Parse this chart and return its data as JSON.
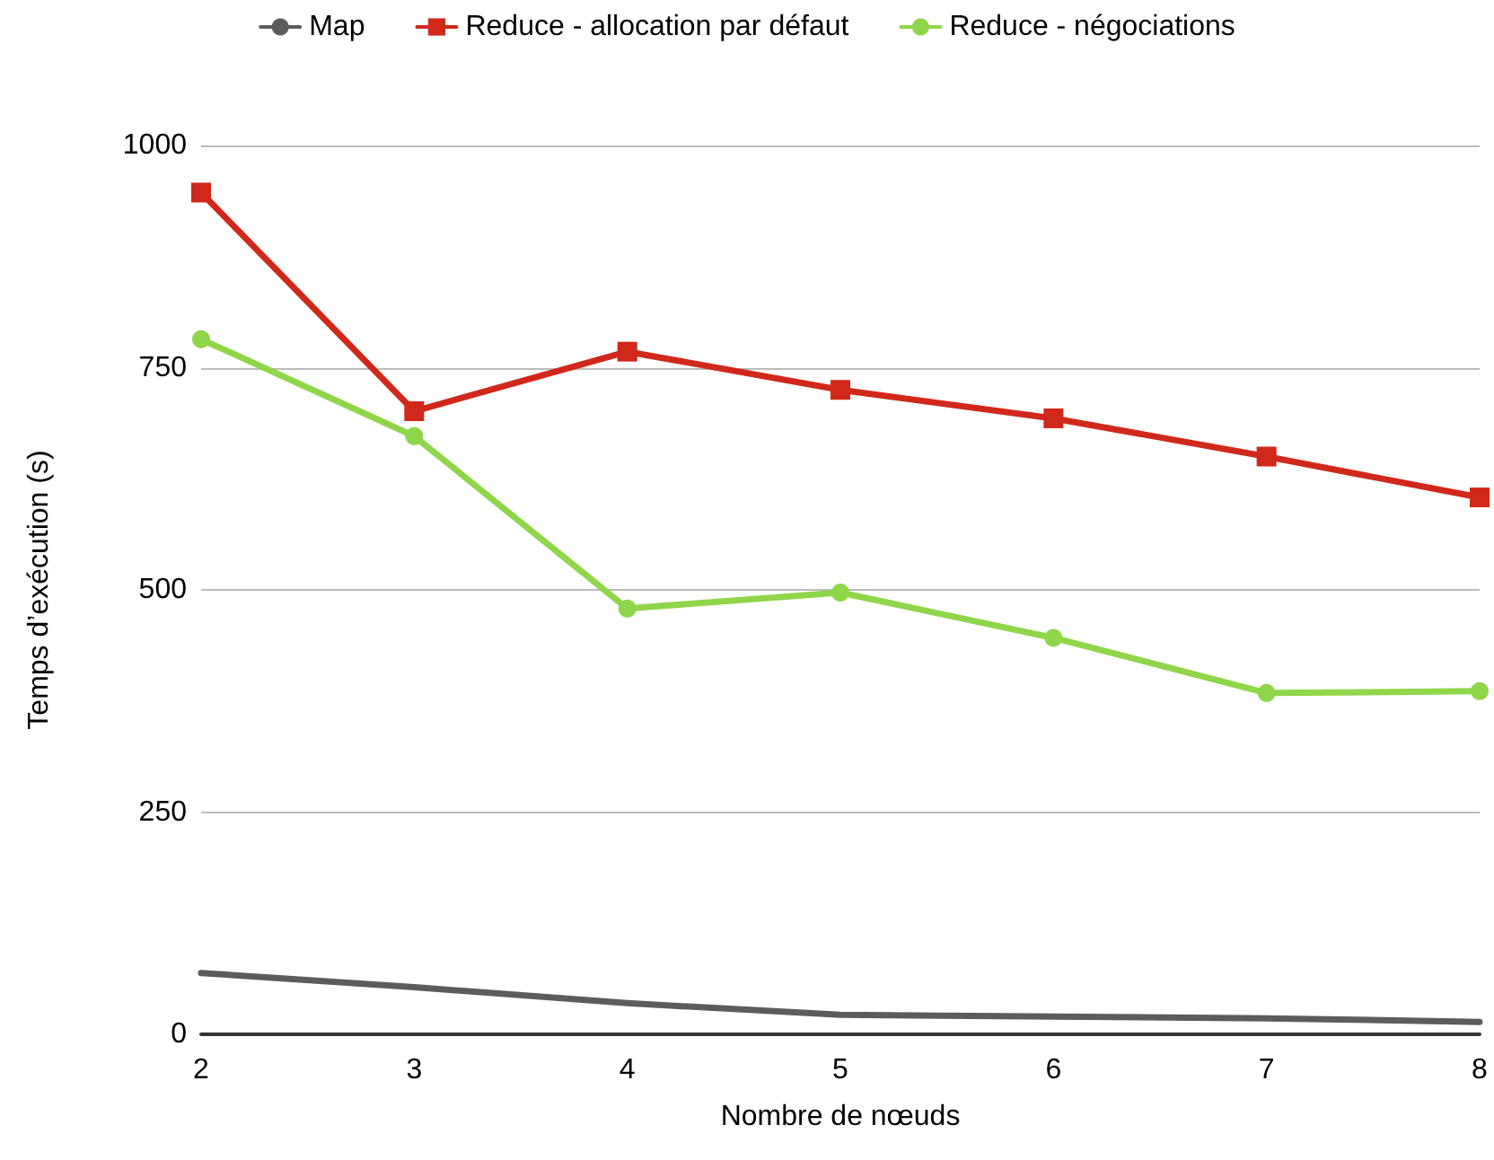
{
  "chart_data": {
    "type": "line",
    "xlabel": "Nombre de nœuds",
    "ylabel": "Temps d’exécution (s)",
    "x": [
      2,
      3,
      4,
      5,
      6,
      7,
      8
    ],
    "xlim": [
      2,
      8
    ],
    "xticks": [
      2,
      3,
      4,
      5,
      6,
      7,
      8
    ],
    "ylim": [
      0,
      1000
    ],
    "yticks": [
      0,
      250,
      500,
      750,
      1000
    ],
    "grid": "y",
    "legend": "top",
    "series": [
      {
        "name": "Map",
        "color": "#5c5c5c",
        "marker": "none",
        "values": [
          69,
          53,
          35,
          22,
          20,
          18,
          14
        ]
      },
      {
        "name": "Reduce - allocation par défaut",
        "color": "#d0281a",
        "marker": "square",
        "values": [
          947,
          701,
          768,
          725,
          693,
          650,
          604
        ]
      },
      {
        "name": "Reduce - négociations",
        "color": "#8fd64a",
        "marker": "circle",
        "values": [
          782,
          673,
          479,
          497,
          446,
          384,
          386
        ]
      }
    ]
  }
}
